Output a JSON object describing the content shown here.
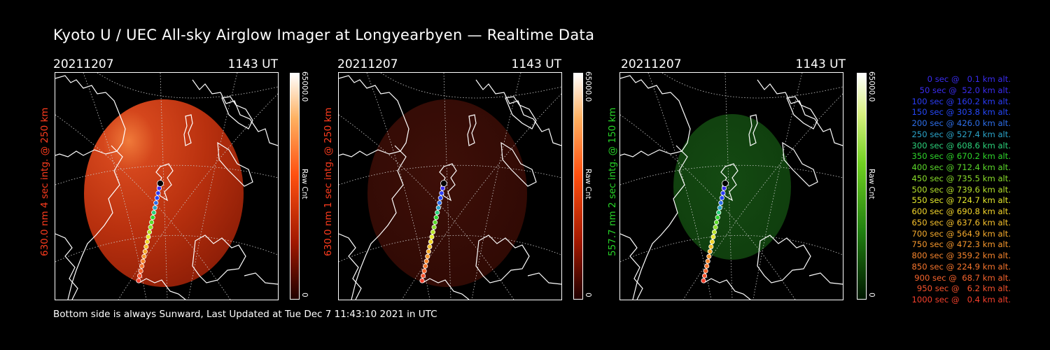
{
  "title": "Kyoto U / UEC All-sky Airglow Imager at Longyearbyen — Realtime Data",
  "footer": "Bottom side is always Sunward, Last Updated at Tue Dec  7 11:43:10 2021 in UTC",
  "colors": {
    "red": "#ff3c1e",
    "green": "#27d627",
    "background": "#000000",
    "foreground": "#ffffff"
  },
  "panels": [
    {
      "date": "20211207",
      "time": "1143 UT",
      "ylabel": "630.0 nm 4 sec intg. @ 250 km",
      "ylabel_color": "#ff3c1e",
      "colorbar_max": "65000.0",
      "colorbar_unit": "Raw Cnt",
      "colorbar_min": "0",
      "image_color": "red-bright"
    },
    {
      "date": "20211207",
      "time": "1143 UT",
      "ylabel": "630.0 nm 1 sec intg. @ 250 km",
      "ylabel_color": "#ff3c1e",
      "colorbar_max": "65000.0",
      "colorbar_unit": "Raw Cnt",
      "colorbar_min": "0",
      "image_color": "red-dim"
    },
    {
      "date": "20211207",
      "time": "1143 UT",
      "ylabel": "557.7 nm 2 sec intg. @ 150 km",
      "ylabel_color": "#27d627",
      "colorbar_max": "65000.0",
      "colorbar_unit": "Raw Cnt",
      "colorbar_min": "0",
      "image_color": "green-dim"
    }
  ],
  "legend": [
    {
      "text": "0 sec @   0.1 km alt.",
      "color": "#3a2cf0"
    },
    {
      "text": "50 sec @  52.0 km alt.",
      "color": "#3a2cf0"
    },
    {
      "text": "100 sec @ 160.2 km alt.",
      "color": "#2b3cf5"
    },
    {
      "text": "150 sec @ 303.8 km alt.",
      "color": "#2547f7"
    },
    {
      "text": "200 sec @ 426.0 km alt.",
      "color": "#2d6ee8"
    },
    {
      "text": "250 sec @ 527.4 km alt.",
      "color": "#2ba3c8"
    },
    {
      "text": "300 sec @ 608.6 km alt.",
      "color": "#2bd07a"
    },
    {
      "text": "350 sec @ 670.2 km alt.",
      "color": "#2ed52b"
    },
    {
      "text": "400 sec @ 712.4 km alt.",
      "color": "#5ad82a"
    },
    {
      "text": "450 sec @ 735.5 km alt.",
      "color": "#8ade2a"
    },
    {
      "text": "500 sec @ 739.6 km alt.",
      "color": "#b6e22b"
    },
    {
      "text": "550 sec @ 724.7 km alt.",
      "color": "#e3e82b"
    },
    {
      "text": "600 sec @ 690.8 km alt.",
      "color": "#f2d52b"
    },
    {
      "text": "650 sec @ 637.6 km alt.",
      "color": "#f5c02c"
    },
    {
      "text": "700 sec @ 564.9 km alt.",
      "color": "#f5aa2c"
    },
    {
      "text": "750 sec @ 472.3 km alt.",
      "color": "#f5962c"
    },
    {
      "text": "800 sec @ 359.2 km alt.",
      "color": "#f5842c"
    },
    {
      "text": "850 sec @ 224.9 km alt.",
      "color": "#f5742c"
    },
    {
      "text": "900 sec @  68.7 km alt.",
      "color": "#f5632c"
    },
    {
      "text": "950 sec @   6.2 km alt.",
      "color": "#f5522c"
    },
    {
      "text": "1000 sec @   0.4 km alt.",
      "color": "#f5402c"
    }
  ]
}
